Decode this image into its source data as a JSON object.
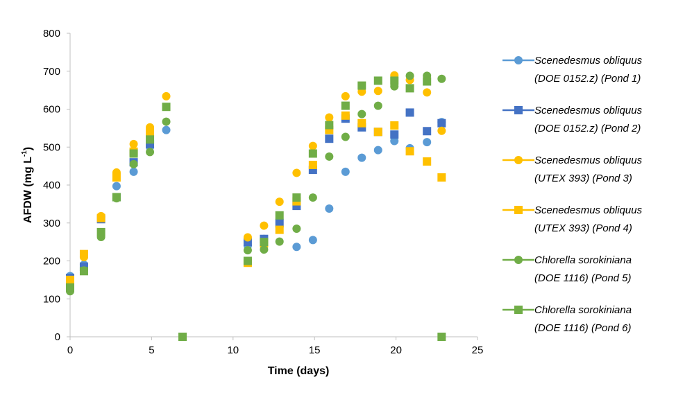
{
  "chart_data": {
    "type": "scatter",
    "xlabel": "Time (days)",
    "ylabel_main": "AFDW (mg L",
    "ylabel_sup": "-1",
    "ylabel_close": ")",
    "xlim": [
      0,
      25
    ],
    "ylim": [
      0,
      800
    ],
    "x_ticks": [
      "0",
      "5",
      "10",
      "15",
      "20",
      "25"
    ],
    "y_ticks": [
      "0",
      "100",
      "200",
      "300",
      "400",
      "500",
      "600",
      "700",
      "800"
    ],
    "grid": false,
    "legend_position": "right",
    "series": [
      {
        "name_line1": "Scenedesmus obliquus",
        "name_line2": "(DOE 0152.z) (Pond 1)",
        "marker": "circle",
        "color": "#5b9bd5",
        "points": [
          [
            0,
            160
          ],
          [
            0.85,
            190
          ],
          [
            1.9,
            315
          ],
          [
            2.85,
            397
          ],
          [
            3.9,
            435
          ],
          [
            4.9,
            500
          ],
          [
            5.9,
            545
          ],
          [
            10.9,
            240
          ],
          [
            11.9,
            258
          ],
          [
            12.85,
            290
          ],
          [
            13.9,
            237
          ],
          [
            14.9,
            255
          ],
          [
            15.9,
            338
          ],
          [
            16.9,
            435
          ],
          [
            17.9,
            472
          ],
          [
            18.9,
            492
          ],
          [
            19.9,
            516
          ],
          [
            20.85,
            497
          ],
          [
            21.9,
            513
          ],
          [
            22.8,
            566
          ]
        ]
      },
      {
        "name_line1": "Scenedesmus obliquus",
        "name_line2": "(DOE 0152.z) (Pond 2)",
        "marker": "square",
        "color": "#4472c4",
        "points": [
          [
            0,
            155
          ],
          [
            0.85,
            185
          ],
          [
            1.9,
            310
          ],
          [
            2.85,
            368
          ],
          [
            3.9,
            460
          ],
          [
            4.9,
            508
          ],
          [
            10.9,
            250
          ],
          [
            11.9,
            258
          ],
          [
            12.85,
            300
          ],
          [
            13.9,
            345
          ],
          [
            14.9,
            440
          ],
          [
            15.9,
            522
          ],
          [
            16.9,
            575
          ],
          [
            17.9,
            552
          ],
          [
            18.9,
            540
          ],
          [
            19.9,
            533
          ],
          [
            20.85,
            591
          ],
          [
            21.9,
            542
          ],
          [
            22.8,
            563
          ]
        ]
      },
      {
        "name_line1": "Scenedesmus obliquus",
        "name_line2": "(UTEX 393) (Pond 3)",
        "marker": "circle",
        "color": "#ffc000",
        "points": [
          [
            0,
            140
          ],
          [
            0.85,
            210
          ],
          [
            1.9,
            318
          ],
          [
            2.85,
            433
          ],
          [
            3.9,
            508
          ],
          [
            4.9,
            552
          ],
          [
            5.9,
            634
          ],
          [
            10.9,
            262
          ],
          [
            11.9,
            293
          ],
          [
            12.85,
            356
          ],
          [
            13.9,
            432
          ],
          [
            14.9,
            503
          ],
          [
            15.9,
            578
          ],
          [
            16.9,
            634
          ],
          [
            17.9,
            646
          ],
          [
            18.9,
            648
          ],
          [
            19.9,
            689
          ],
          [
            20.85,
            677
          ],
          [
            21.9,
            644
          ],
          [
            22.8,
            543
          ]
        ]
      },
      {
        "name_line1": "Scenedesmus obliquus",
        "name_line2": "(UTEX 393) (Pond 4)",
        "marker": "square",
        "color": "#ffc000",
        "points": [
          [
            0,
            150
          ],
          [
            0.85,
            218
          ],
          [
            1.9,
            313
          ],
          [
            2.85,
            420
          ],
          [
            3.9,
            488
          ],
          [
            4.9,
            540
          ],
          [
            10.9,
            195
          ],
          [
            11.9,
            246
          ],
          [
            12.85,
            282
          ],
          [
            13.9,
            357
          ],
          [
            14.9,
            453
          ],
          [
            15.9,
            545
          ],
          [
            16.9,
            583
          ],
          [
            17.9,
            563
          ],
          [
            18.9,
            540
          ],
          [
            19.9,
            557
          ],
          [
            20.85,
            489
          ],
          [
            21.9,
            462
          ],
          [
            22.8,
            420
          ]
        ]
      },
      {
        "name_line1": "Chlorella sorokiniana",
        "name_line2": "(DOE 1116) (Pond 5)",
        "marker": "circle",
        "color": "#70ad47",
        "points": [
          [
            0,
            120
          ],
          [
            0.85,
            175
          ],
          [
            1.9,
            263
          ],
          [
            2.85,
            365
          ],
          [
            3.9,
            455
          ],
          [
            4.9,
            487
          ],
          [
            5.9,
            567
          ],
          [
            10.9,
            228
          ],
          [
            11.9,
            230
          ],
          [
            12.85,
            251
          ],
          [
            13.9,
            285
          ],
          [
            14.9,
            367
          ],
          [
            15.9,
            475
          ],
          [
            16.9,
            527
          ],
          [
            17.9,
            587
          ],
          [
            18.9,
            609
          ],
          [
            19.9,
            660
          ],
          [
            20.85,
            688
          ],
          [
            21.9,
            688
          ],
          [
            22.8,
            680
          ]
        ]
      },
      {
        "name_line1": "Chlorella sorokiniana",
        "name_line2": "(DOE 1116) (Pond 6)",
        "marker": "square",
        "color": "#70ad47",
        "points": [
          [
            0,
            130
          ],
          [
            0.85,
            173
          ],
          [
            1.9,
            276
          ],
          [
            2.85,
            368
          ],
          [
            3.9,
            483
          ],
          [
            4.9,
            520
          ],
          [
            5.9,
            606
          ],
          [
            6.9,
            0
          ],
          [
            10.9,
            200
          ],
          [
            11.9,
            250
          ],
          [
            12.85,
            320
          ],
          [
            13.9,
            367
          ],
          [
            14.9,
            483
          ],
          [
            15.9,
            558
          ],
          [
            16.9,
            609
          ],
          [
            17.9,
            662
          ],
          [
            18.9,
            675
          ],
          [
            19.9,
            675
          ],
          [
            20.85,
            655
          ],
          [
            21.9,
            673
          ],
          [
            22.8,
            0
          ]
        ]
      }
    ]
  }
}
